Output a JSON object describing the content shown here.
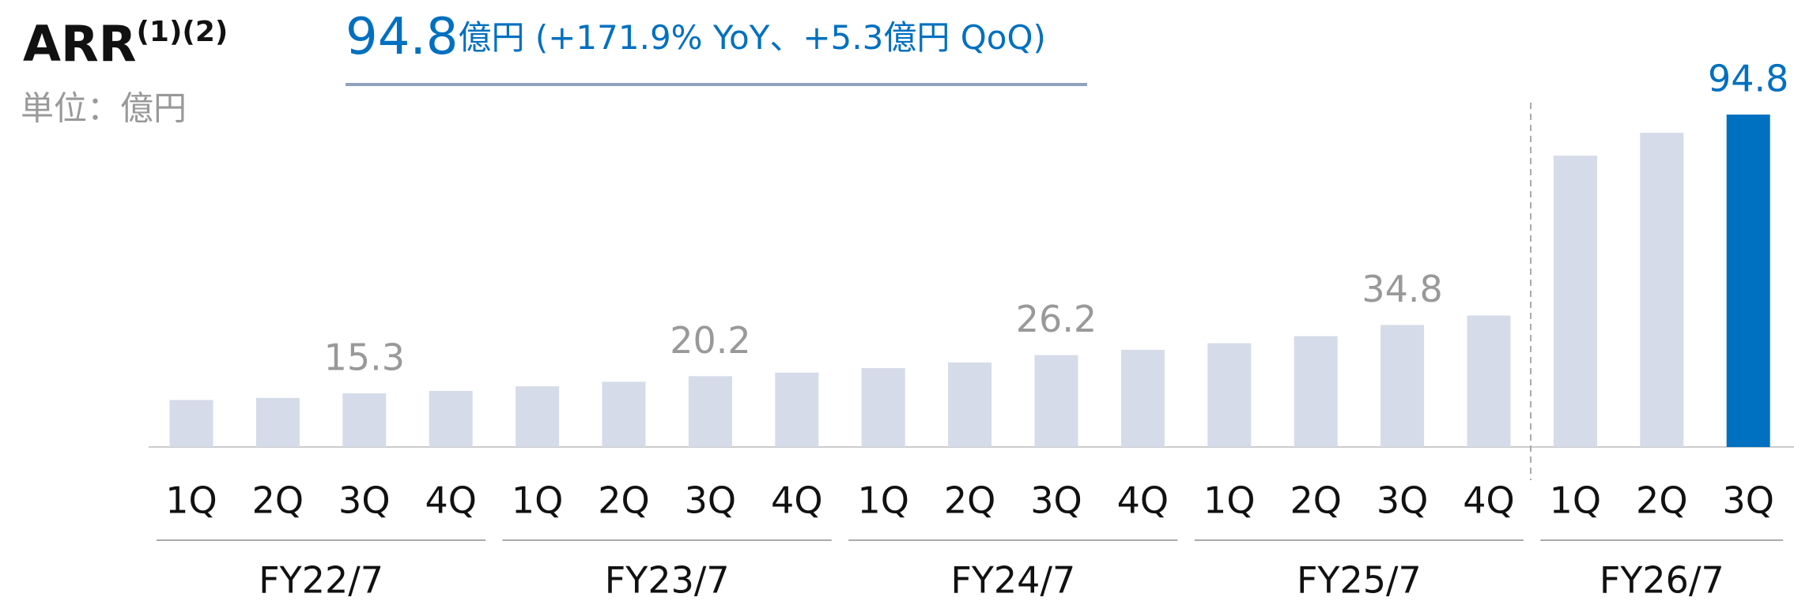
{
  "chart_data": {
    "type": "bar",
    "title": "ARR",
    "title_note": "(1)(2)",
    "unit": "単位：億円",
    "headline_value": "94.8",
    "headline_text": "億円 (+171.9% YoY、+5.3億円 QoQ)",
    "groups": [
      {
        "name": "FY22/7",
        "categories": [
          "1Q",
          "2Q",
          "3Q",
          "4Q"
        ]
      },
      {
        "name": "FY23/7",
        "categories": [
          "1Q",
          "2Q",
          "3Q",
          "4Q"
        ]
      },
      {
        "name": "FY24/7",
        "categories": [
          "1Q",
          "2Q",
          "3Q",
          "4Q"
        ]
      },
      {
        "name": "FY25/7",
        "categories": [
          "1Q",
          "2Q",
          "3Q",
          "4Q"
        ]
      },
      {
        "name": "FY26/7",
        "categories": [
          "1Q",
          "2Q",
          "3Q"
        ]
      }
    ],
    "values": [
      13.4,
      14.0,
      15.3,
      16.0,
      17.3,
      18.6,
      20.2,
      21.2,
      22.5,
      24.1,
      26.2,
      27.7,
      29.6,
      31.6,
      34.8,
      37.5,
      83.1,
      89.6,
      94.8
    ],
    "value_labels": [
      null,
      null,
      "15.3",
      null,
      null,
      null,
      "20.2",
      null,
      null,
      null,
      "26.2",
      null,
      null,
      null,
      "34.8",
      null,
      null,
      null,
      "94.8"
    ],
    "colors": [
      "#d5dbe8",
      "#d5dbe8",
      "#d5dbe8",
      "#d5dbe8",
      "#d5dbe8",
      "#d5dbe8",
      "#d5dbe8",
      "#d5dbe8",
      "#d5dbe8",
      "#d5dbe8",
      "#d5dbe8",
      "#d5dbe8",
      "#d5dbe8",
      "#d5dbe8",
      "#d5dbe8",
      "#d5dbe8",
      "#d5dbe8",
      "#d5dbe8",
      "#0070c0"
    ],
    "label_colors": [
      "#999999",
      "#999999",
      "#999999",
      "#999999",
      "#999999",
      "#999999",
      "#999999",
      "#999999",
      "#999999",
      "#999999",
      "#999999",
      "#999999",
      "#999999",
      "#999999",
      "#999999",
      "#999999",
      "#999999",
      "#999999",
      "#0070c0"
    ],
    "ylim": [
      0,
      100
    ]
  }
}
